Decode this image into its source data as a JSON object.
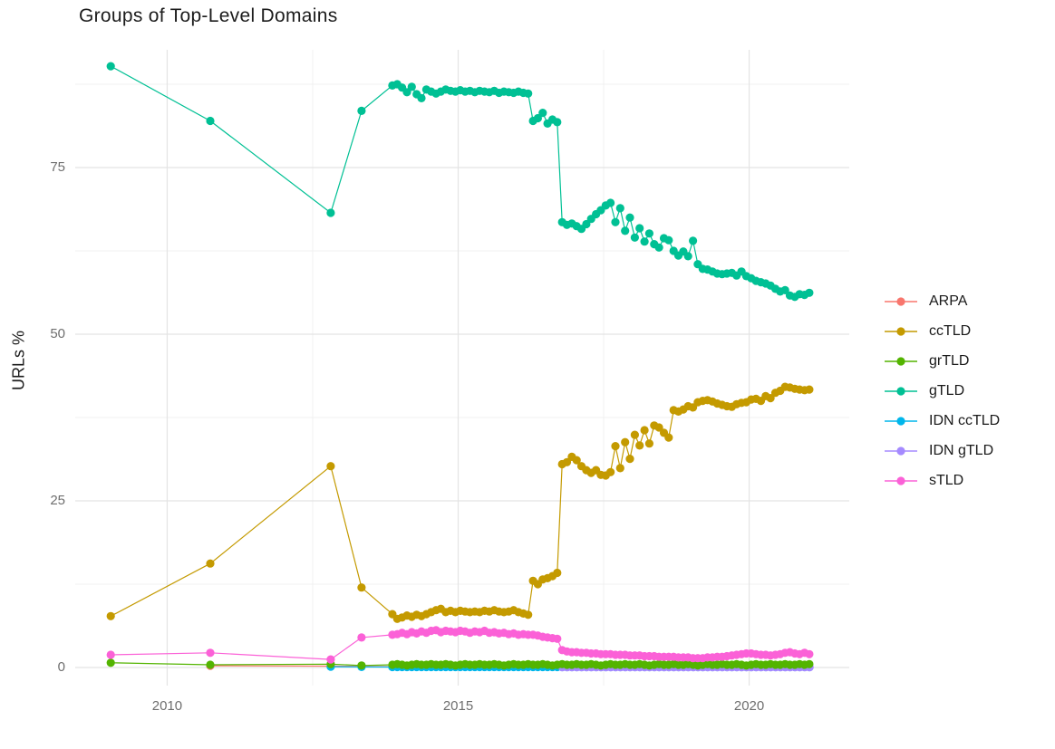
{
  "chart_data": {
    "type": "scatter",
    "connected": true,
    "title": "Groups of Top-Level Domains",
    "xlabel": "",
    "ylabel": "URLs %",
    "xlim": [
      2008.42,
      2021.72
    ],
    "ylim": [
      -2.72,
      92.66
    ],
    "x_ticks": [
      2010,
      2015,
      2020
    ],
    "x_minor": [
      2012.5,
      2017.5
    ],
    "y_ticks": [
      0,
      25,
      50,
      75
    ],
    "y_minor": [
      12.5,
      37.5,
      62.5,
      87.5
    ],
    "grid": true,
    "legend_position": "right",
    "series": [
      {
        "name": "ARPA",
        "color": "#F8766D",
        "head": [
          [
            2010.74,
            0.25
          ],
          [
            2012.81,
            0.2
          ]
        ],
        "dense_start": 2013.87,
        "dense_step": 0.0833,
        "dense_fill": {
          "value": 0.12,
          "count": 87
        }
      },
      {
        "name": "IDN ccTLD",
        "color": "#00B6EB",
        "head": [
          [
            2012.81,
            0.12
          ],
          [
            2013.34,
            0.08
          ]
        ],
        "dense_start": 2013.87,
        "dense_step": 0.0833,
        "dense_fill": {
          "value": 0.06,
          "count": 87
        }
      },
      {
        "name": "IDN gTLD",
        "color": "#A58AFF",
        "head": [],
        "dense_start": 2016.79,
        "dense_step": 0.0833,
        "dense_fill": {
          "value": 0.04,
          "count": 52
        }
      },
      {
        "name": "grTLD",
        "color": "#53B400",
        "head": [
          [
            2009.03,
            0.7
          ],
          [
            2010.74,
            0.4
          ],
          [
            2012.81,
            0.5
          ],
          [
            2013.34,
            0.3
          ]
        ],
        "dense_start": 2013.87,
        "dense_step": 0.0833,
        "dense": [
          0.4,
          0.5,
          0.4,
          0.3,
          0.4,
          0.5,
          0.4,
          0.4,
          0.5,
          0.4,
          0.4,
          0.5,
          0.4,
          0.3,
          0.4,
          0.5,
          0.4,
          0.4,
          0.5,
          0.4,
          0.4,
          0.5,
          0.4,
          0.3,
          0.4,
          0.5,
          0.4,
          0.4,
          0.5,
          0.4,
          0.4,
          0.5,
          0.4,
          0.3,
          0.4,
          0.5,
          0.4,
          0.4,
          0.5,
          0.4,
          0.4,
          0.5,
          0.4,
          0.3,
          0.4,
          0.5,
          0.4,
          0.4,
          0.5,
          0.4,
          0.4,
          0.5,
          0.4,
          0.3,
          0.4,
          0.5,
          0.4,
          0.4,
          0.5,
          0.4,
          0.4,
          0.5,
          0.4,
          0.3,
          0.4,
          0.5,
          0.4,
          0.4,
          0.5,
          0.4,
          0.4,
          0.5,
          0.4,
          0.3,
          0.4,
          0.5,
          0.4,
          0.4,
          0.5,
          0.4,
          0.4,
          0.5,
          0.4,
          0.4,
          0.5,
          0.4,
          0.5
        ]
      },
      {
        "name": "ccTLD",
        "color": "#C49A00",
        "head": [
          [
            2009.03,
            7.7
          ],
          [
            2010.74,
            15.6
          ],
          [
            2012.81,
            30.2
          ],
          [
            2013.34,
            12.0
          ]
        ],
        "dense_start": 2013.87,
        "dense_step": 0.0833,
        "dense": [
          8.0,
          7.3,
          7.5,
          7.8,
          7.6,
          7.9,
          7.7,
          8.0,
          8.3,
          8.6,
          8.8,
          8.3,
          8.5,
          8.3,
          8.5,
          8.4,
          8.3,
          8.4,
          8.3,
          8.5,
          8.4,
          8.6,
          8.4,
          8.3,
          8.4,
          8.6,
          8.3,
          8.1,
          7.9,
          13.0,
          12.5,
          13.2,
          13.4,
          13.7,
          14.2,
          30.5,
          30.8,
          31.6,
          31.1,
          30.2,
          29.6,
          29.2,
          29.6,
          28.9,
          28.8,
          29.3,
          33.2,
          29.9,
          33.8,
          31.3,
          34.9,
          33.3,
          35.6,
          33.6,
          36.3,
          36.0,
          35.2,
          34.5,
          38.6,
          38.4,
          38.7,
          39.2,
          39.0,
          39.8,
          40.0,
          40.1,
          39.9,
          39.6,
          39.4,
          39.2,
          39.1,
          39.5,
          39.7,
          39.8,
          40.2,
          40.3,
          40.0,
          40.7,
          40.4,
          41.2,
          41.5,
          42.1,
          42.0,
          41.8,
          41.7,
          41.6,
          41.7
        ]
      },
      {
        "name": "gTLD",
        "color": "#00C094",
        "head": [
          [
            2009.03,
            90.2
          ],
          [
            2010.74,
            82.0
          ],
          [
            2012.81,
            68.2
          ],
          [
            2013.34,
            83.5
          ]
        ],
        "dense_start": 2013.87,
        "dense_step": 0.0833,
        "dense": [
          87.3,
          87.5,
          87.0,
          86.3,
          87.1,
          86.0,
          85.4,
          86.7,
          86.4,
          86.1,
          86.4,
          86.7,
          86.5,
          86.4,
          86.6,
          86.4,
          86.5,
          86.3,
          86.5,
          86.4,
          86.3,
          86.5,
          86.2,
          86.4,
          86.3,
          86.2,
          86.4,
          86.2,
          86.1,
          82.0,
          82.4,
          83.2,
          81.6,
          82.2,
          81.8,
          66.8,
          66.4,
          66.6,
          66.2,
          65.8,
          66.5,
          67.3,
          68.0,
          68.6,
          69.3,
          69.7,
          66.8,
          68.9,
          65.5,
          67.5,
          64.5,
          65.9,
          63.9,
          65.1,
          63.5,
          63.0,
          64.4,
          64.1,
          62.5,
          61.8,
          62.4,
          61.7,
          64.0,
          60.5,
          59.8,
          59.7,
          59.4,
          59.1,
          59.0,
          59.1,
          59.2,
          58.8,
          59.4,
          58.7,
          58.4,
          58.0,
          57.8,
          57.6,
          57.3,
          56.8,
          56.4,
          56.6,
          55.8,
          55.6,
          56.0,
          55.9,
          56.2
        ]
      },
      {
        "name": "sTLD",
        "color": "#FB61D7",
        "head": [
          [
            2009.03,
            1.9
          ],
          [
            2010.74,
            2.2
          ],
          [
            2012.81,
            1.2
          ],
          [
            2013.34,
            4.5
          ]
        ],
        "dense_start": 2013.87,
        "dense_step": 0.0833,
        "dense": [
          4.9,
          5.0,
          5.2,
          5.0,
          5.3,
          5.1,
          5.4,
          5.2,
          5.5,
          5.6,
          5.3,
          5.5,
          5.4,
          5.3,
          5.5,
          5.4,
          5.2,
          5.4,
          5.3,
          5.5,
          5.2,
          5.3,
          5.1,
          5.2,
          5.0,
          5.1,
          4.9,
          5.0,
          4.9,
          4.9,
          4.8,
          4.6,
          4.5,
          4.4,
          4.3,
          2.6,
          2.4,
          2.3,
          2.3,
          2.2,
          2.2,
          2.1,
          2.1,
          2.0,
          2.0,
          2.0,
          1.9,
          1.9,
          1.9,
          1.8,
          1.8,
          1.8,
          1.7,
          1.7,
          1.7,
          1.6,
          1.6,
          1.6,
          1.6,
          1.5,
          1.5,
          1.5,
          1.4,
          1.4,
          1.4,
          1.5,
          1.5,
          1.6,
          1.6,
          1.7,
          1.8,
          1.9,
          2.0,
          2.1,
          2.1,
          2.0,
          1.9,
          1.9,
          1.8,
          1.9,
          2.0,
          2.2,
          2.3,
          2.1,
          2.0,
          2.2,
          2.0
        ]
      }
    ]
  },
  "legend": {
    "items": [
      {
        "label": "ARPA",
        "color": "#F8766D"
      },
      {
        "label": "ccTLD",
        "color": "#C49A00"
      },
      {
        "label": "grTLD",
        "color": "#53B400"
      },
      {
        "label": "gTLD",
        "color": "#00C094"
      },
      {
        "label": "IDN ccTLD",
        "color": "#00B6EB"
      },
      {
        "label": "IDN gTLD",
        "color": "#A58AFF"
      },
      {
        "label": "sTLD",
        "color": "#FB61D7"
      }
    ]
  },
  "style": {
    "grid_major_color": "#e4e4e4",
    "grid_minor_color": "#f0f0f0",
    "tick_label_color": "#6e6e6e",
    "text_color": "#1c1c1c",
    "background": "#ffffff"
  }
}
